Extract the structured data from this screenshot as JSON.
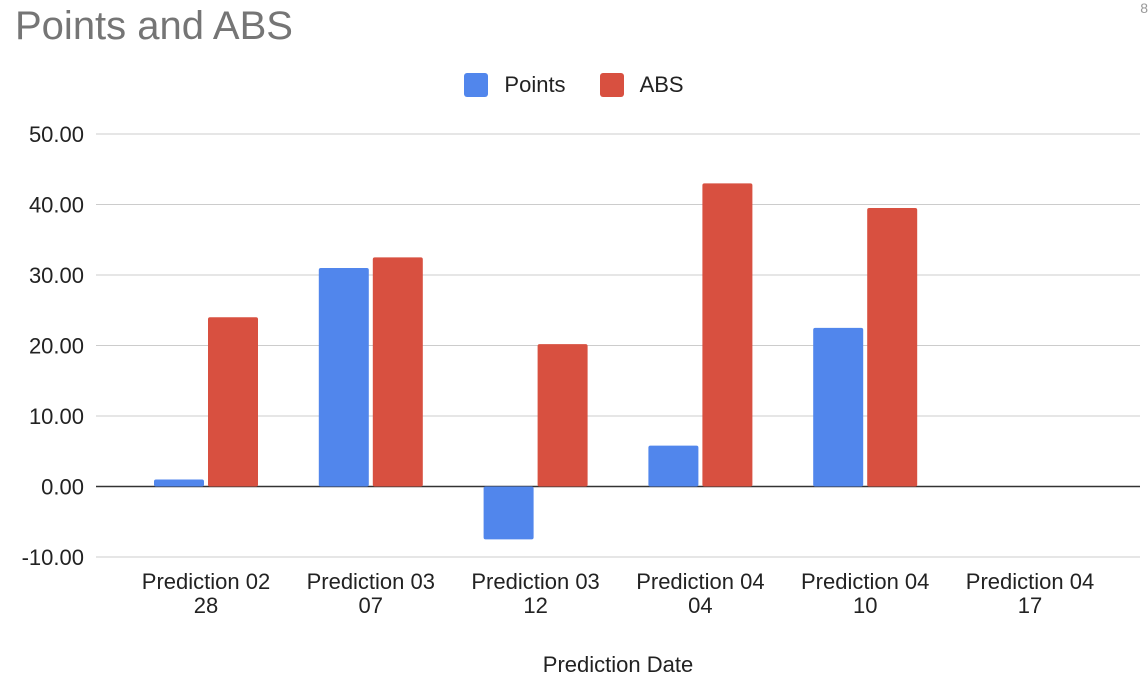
{
  "chart_data": {
    "type": "bar",
    "title": "Points and ABS",
    "xlabel": "Prediction Date",
    "ylabel": "",
    "categories": [
      [
        "Prediction 02",
        "28"
      ],
      [
        "Prediction 03",
        "07"
      ],
      [
        "Prediction 03",
        "12"
      ],
      [
        "Prediction 04",
        "04"
      ],
      [
        "Prediction 04",
        "10"
      ],
      [
        "Prediction 04",
        "17"
      ]
    ],
    "series": [
      {
        "name": "Points",
        "color": "#5186ec",
        "values": [
          1.0,
          31.0,
          -7.5,
          5.8,
          22.5,
          null
        ]
      },
      {
        "name": "ABS",
        "color": "#d85040",
        "values": [
          24.0,
          32.5,
          20.2,
          43.0,
          39.5,
          null
        ]
      }
    ],
    "ylim": [
      -10,
      50
    ],
    "yticks": [
      "50.00",
      "40.00",
      "30.00",
      "20.00",
      "10.00",
      "0.00",
      "-10.00"
    ],
    "grid": true,
    "legend_position": "top"
  },
  "corner_mark": "8"
}
